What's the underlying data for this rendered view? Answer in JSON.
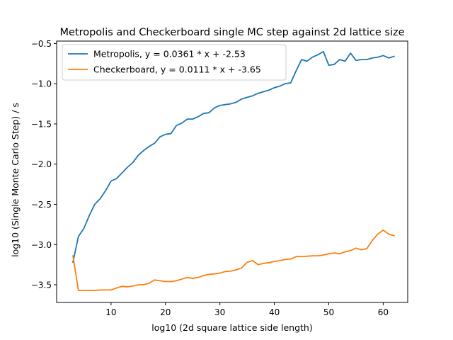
{
  "chart_data": {
    "type": "line",
    "title": "Metropolis and Checkerboard single MC step against 2d lattice size",
    "xlabel": "log10 (2d square lattice side length)",
    "ylabel": "log10 (Single Monte Carlo Step) / s",
    "xlim": [
      0,
      64.5
    ],
    "ylim": [
      -3.72,
      -0.47
    ],
    "xticks": [
      10,
      20,
      30,
      40,
      50,
      60
    ],
    "yticks": [
      -3.5,
      -3.0,
      -2.5,
      -2.0,
      -1.5,
      -1.0,
      -0.5
    ],
    "ytick_labels": [
      "−3.5",
      "−3.0",
      "−2.5",
      "−2.0",
      "−1.5",
      "−1.0",
      "−0.5"
    ],
    "grid": false,
    "legend_position": "top-left",
    "series": [
      {
        "name": "Metropolis, y = 0.0361 * x + -2.53",
        "color": "#1f77b4",
        "x": [
          3,
          4,
          5,
          6,
          7,
          8,
          9,
          10,
          11,
          12,
          13,
          14,
          15,
          16,
          17,
          18,
          19,
          20,
          21,
          22,
          23,
          24,
          25,
          26,
          27,
          28,
          29,
          30,
          31,
          32,
          33,
          34,
          35,
          36,
          37,
          38,
          39,
          40,
          41,
          42,
          43,
          44,
          45,
          46,
          47,
          48,
          49,
          50,
          51,
          52,
          53,
          54,
          55,
          56,
          57,
          58,
          59,
          60,
          61,
          62
        ],
        "y": [
          -3.22,
          -2.9,
          -2.8,
          -2.64,
          -2.5,
          -2.43,
          -2.33,
          -2.21,
          -2.18,
          -2.11,
          -2.04,
          -1.98,
          -1.89,
          -1.83,
          -1.78,
          -1.74,
          -1.66,
          -1.63,
          -1.62,
          -1.52,
          -1.49,
          -1.44,
          -1.44,
          -1.41,
          -1.37,
          -1.36,
          -1.3,
          -1.27,
          -1.26,
          -1.25,
          -1.23,
          -1.19,
          -1.17,
          -1.15,
          -1.12,
          -1.1,
          -1.08,
          -1.05,
          -1.03,
          -1.0,
          -0.99,
          -0.84,
          -0.7,
          -0.72,
          -0.67,
          -0.64,
          -0.6,
          -0.77,
          -0.76,
          -0.7,
          -0.72,
          -0.62,
          -0.71,
          -0.7,
          -0.7,
          -0.68,
          -0.67,
          -0.65,
          -0.68,
          -0.66
        ]
      },
      {
        "name": "Checkerboard, y = 0.0111 * x + -3.65",
        "color": "#ff7f0e",
        "x": [
          3,
          4,
          5,
          6,
          7,
          8,
          9,
          10,
          11,
          12,
          13,
          14,
          15,
          16,
          17,
          18,
          19,
          20,
          21,
          22,
          23,
          24,
          25,
          26,
          27,
          28,
          29,
          30,
          31,
          32,
          33,
          34,
          35,
          36,
          37,
          38,
          39,
          40,
          41,
          42,
          43,
          44,
          45,
          46,
          47,
          48,
          49,
          50,
          51,
          52,
          53,
          54,
          55,
          56,
          57,
          58,
          59,
          60,
          61,
          62
        ],
        "y": [
          -3.14,
          -3.57,
          -3.57,
          -3.57,
          -3.57,
          -3.565,
          -3.565,
          -3.565,
          -3.54,
          -3.52,
          -3.525,
          -3.515,
          -3.5,
          -3.5,
          -3.48,
          -3.44,
          -3.45,
          -3.46,
          -3.46,
          -3.45,
          -3.43,
          -3.41,
          -3.42,
          -3.41,
          -3.385,
          -3.37,
          -3.365,
          -3.355,
          -3.335,
          -3.33,
          -3.315,
          -3.29,
          -3.22,
          -3.2,
          -3.25,
          -3.235,
          -3.225,
          -3.21,
          -3.2,
          -3.185,
          -3.18,
          -3.15,
          -3.15,
          -3.145,
          -3.14,
          -3.14,
          -3.13,
          -3.115,
          -3.105,
          -3.115,
          -3.09,
          -3.075,
          -3.045,
          -3.065,
          -3.05,
          -2.95,
          -2.87,
          -2.82,
          -2.87,
          -2.89
        ]
      }
    ]
  }
}
